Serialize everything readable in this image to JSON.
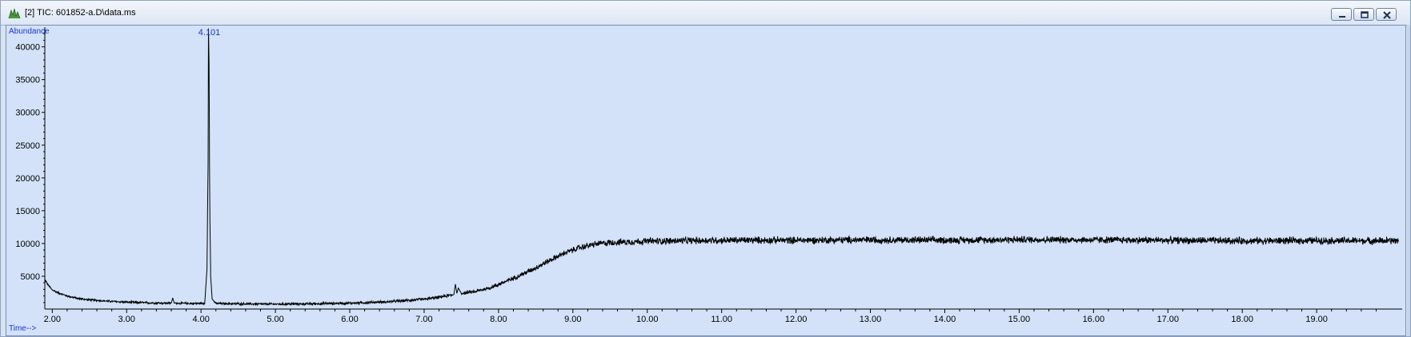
{
  "window": {
    "title": "[2] TIC: 601852-a.D\\data.ms",
    "controls": [
      "minimize",
      "restore",
      "close"
    ]
  },
  "chart_data": {
    "type": "line",
    "title": "",
    "ylabel": "Abundance",
    "xlabel": "Time-->",
    "xlim": [
      1.9,
      20.15
    ],
    "ylim": [
      0,
      43000
    ],
    "x_ticks": [
      "2.00",
      "3.00",
      "4.00",
      "5.00",
      "6.00",
      "7.00",
      "8.00",
      "9.00",
      "10.00",
      "11.00",
      "12.00",
      "13.00",
      "14.00",
      "15.00",
      "16.00",
      "17.00",
      "18.00",
      "19.00"
    ],
    "y_ticks": [
      "5000",
      "10000",
      "15000",
      "20000",
      "25000",
      "30000",
      "35000",
      "40000"
    ],
    "grid": false,
    "line_color": "#000000",
    "background_color": "#d3e2f9",
    "annotations": [
      {
        "text": "4.101",
        "x": 4.101,
        "y": 42500
      }
    ],
    "series": [
      {
        "trace_points": [
          [
            1.9,
            4500
          ],
          [
            1.95,
            3600
          ],
          [
            2.0,
            2900
          ],
          [
            2.1,
            2400
          ],
          [
            2.2,
            2000
          ],
          [
            2.35,
            1600
          ],
          [
            2.5,
            1400
          ],
          [
            2.75,
            1200
          ],
          [
            3.0,
            1050
          ],
          [
            3.3,
            950
          ],
          [
            3.6,
            900
          ],
          [
            3.62,
            1700
          ],
          [
            3.64,
            900
          ],
          [
            3.9,
            850
          ],
          [
            4.05,
            900
          ],
          [
            4.08,
            6000
          ],
          [
            4.095,
            22000
          ],
          [
            4.101,
            42800
          ],
          [
            4.108,
            37500
          ],
          [
            4.115,
            21500
          ],
          [
            4.12,
            13500
          ],
          [
            4.13,
            5000
          ],
          [
            4.15,
            1500
          ],
          [
            4.2,
            850
          ],
          [
            4.5,
            800
          ],
          [
            5.0,
            750
          ],
          [
            5.5,
            800
          ],
          [
            6.0,
            900
          ],
          [
            6.5,
            1100
          ],
          [
            7.0,
            1500
          ],
          [
            7.2,
            1800
          ],
          [
            7.4,
            2200
          ],
          [
            7.42,
            3800
          ],
          [
            7.44,
            2400
          ],
          [
            7.46,
            3200
          ],
          [
            7.5,
            2400
          ],
          [
            7.7,
            2700
          ],
          [
            7.9,
            3300
          ],
          [
            8.1,
            4200
          ],
          [
            8.3,
            5200
          ],
          [
            8.5,
            6300
          ],
          [
            8.7,
            7500
          ],
          [
            8.9,
            8600
          ],
          [
            9.1,
            9400
          ],
          [
            9.3,
            9900
          ],
          [
            9.5,
            10150
          ],
          [
            10.0,
            10350
          ],
          [
            11.0,
            10500
          ],
          [
            12.0,
            10500
          ],
          [
            13.0,
            10550
          ],
          [
            14.0,
            10500
          ],
          [
            15.0,
            10600
          ],
          [
            16.0,
            10550
          ],
          [
            17.0,
            10500
          ],
          [
            18.0,
            10400
          ],
          [
            19.0,
            10450
          ],
          [
            20.0,
            10400
          ],
          [
            20.1,
            10450
          ]
        ],
        "noise_amplitude": [
          [
            1.9,
            150
          ],
          [
            7.0,
            200
          ],
          [
            9.0,
            450
          ],
          [
            10.0,
            550
          ],
          [
            20.1,
            550
          ]
        ]
      }
    ]
  }
}
